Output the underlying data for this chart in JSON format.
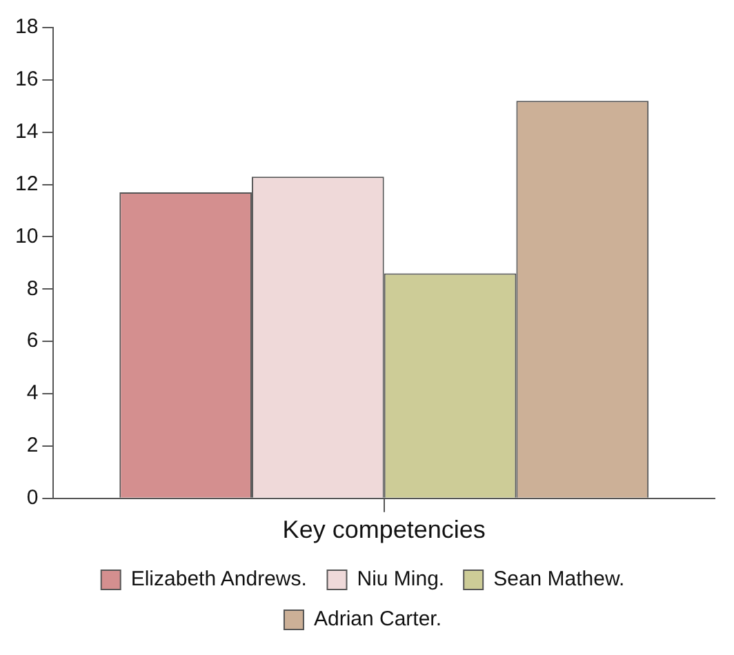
{
  "chart_data": {
    "type": "bar",
    "categories": [
      "Key competencies"
    ],
    "series": [
      {
        "name": "Elizabeth Andrews.",
        "color": "#d48f8f",
        "values": [
          11.7
        ]
      },
      {
        "name": "Niu Ming.",
        "color": "#efd9d9",
        "values": [
          12.3
        ]
      },
      {
        "name": "Sean Mathew.",
        "color": "#cdcc97",
        "values": [
          8.6
        ]
      },
      {
        "name": "Adrian Carter.",
        "color": "#ccb097",
        "values": [
          15.2
        ]
      }
    ],
    "ylim": [
      0,
      18
    ],
    "yticks": [
      0,
      2,
      4,
      6,
      8,
      10,
      12,
      14,
      16,
      18
    ],
    "grid": false,
    "legend": "bottom"
  }
}
